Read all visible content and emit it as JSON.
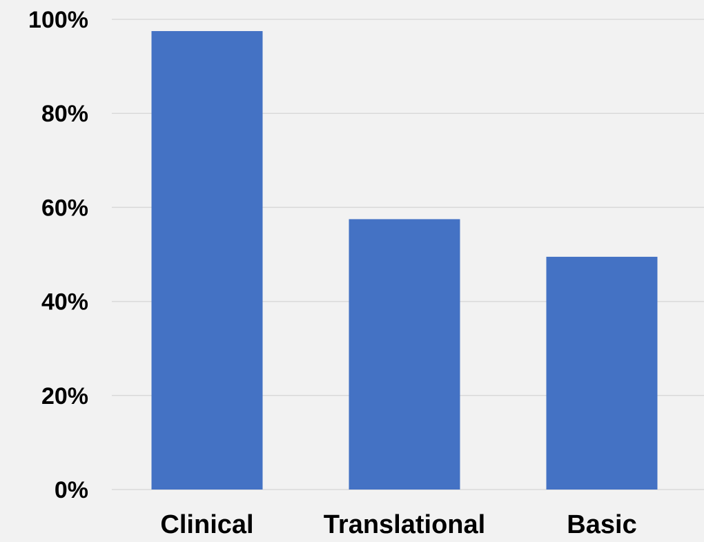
{
  "chart_data": {
    "type": "bar",
    "title": "",
    "xlabel": "",
    "ylabel": "",
    "categories": [
      "Clinical",
      "Translational",
      "Basic"
    ],
    "values": [
      97.5,
      57.5,
      49.5
    ],
    "ylim": [
      0,
      100
    ],
    "yticks": [
      {
        "value": 0,
        "label": "0%"
      },
      {
        "value": 20,
        "label": "20%"
      },
      {
        "value": 40,
        "label": "40%"
      },
      {
        "value": 60,
        "label": "60%"
      },
      {
        "value": 80,
        "label": "80%"
      },
      {
        "value": 100,
        "label": "100%"
      }
    ],
    "grid": true,
    "legend": "none",
    "colors": {
      "bar": "#4472c4",
      "grid": "#d9d9d9",
      "background": "#f2f2f2",
      "text": "#000000"
    }
  }
}
